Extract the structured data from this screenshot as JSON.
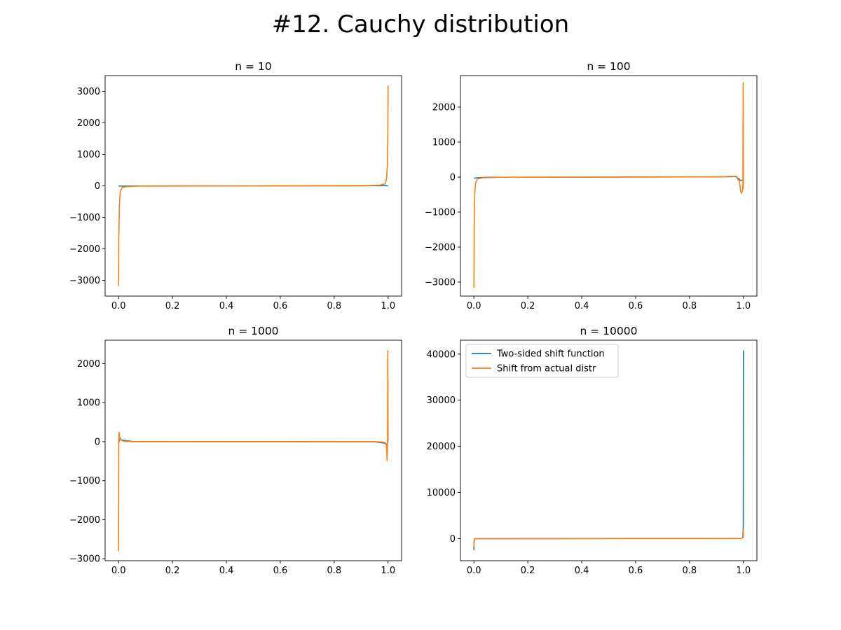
{
  "figure": {
    "title": "#12. Cauchy distribution"
  },
  "colors": {
    "two_sided": "#1f77b4",
    "actual": "#ff7f0e"
  },
  "chart_data": [
    {
      "type": "line",
      "title": "n = 10",
      "xlim": [
        -0.05,
        1.05
      ],
      "ylim": [
        -3500,
        3500
      ],
      "xticks": [
        0.0,
        0.2,
        0.4,
        0.6,
        0.8,
        1.0
      ],
      "xtick_labels": [
        "0.0",
        "0.2",
        "0.4",
        "0.6",
        "0.8",
        "1.0"
      ],
      "yticks": [
        -3000,
        -2000,
        -1000,
        0,
        1000,
        2000,
        3000
      ],
      "ytick_labels": [
        "−3000",
        "−2000",
        "−1000",
        "0",
        "1000",
        "2000",
        "3000"
      ],
      "grid": false,
      "legend": null,
      "series": [
        {
          "color": "#1f77b4",
          "x": [
            0.0,
            0.01,
            0.05,
            0.5,
            0.95,
            0.99,
            1.0
          ],
          "y": [
            -5,
            -8,
            -3,
            0,
            3,
            8,
            5
          ]
        },
        {
          "color": "#ff7f0e",
          "x": [
            0.0,
            0.001,
            0.003,
            0.006,
            0.012,
            0.03,
            0.07,
            0.5,
            0.93,
            0.97,
            0.988,
            0.994,
            0.997,
            0.999,
            1.0
          ],
          "y": [
            -3180,
            -1500,
            -600,
            -200,
            -60,
            -25,
            -10,
            0,
            10,
            25,
            60,
            200,
            600,
            1500,
            3180
          ]
        }
      ]
    },
    {
      "type": "line",
      "title": "n = 100",
      "xlim": [
        -0.05,
        1.05
      ],
      "ylim": [
        -3400,
        2900
      ],
      "xticks": [
        0.0,
        0.2,
        0.4,
        0.6,
        0.8,
        1.0
      ],
      "xtick_labels": [
        "0.0",
        "0.2",
        "0.4",
        "0.6",
        "0.8",
        "1.0"
      ],
      "yticks": [
        -3000,
        -2000,
        -1000,
        0,
        1000,
        2000
      ],
      "ytick_labels": [
        "−3000",
        "−2000",
        "−1000",
        "0",
        "1000",
        "2000"
      ],
      "grid": false,
      "legend": null,
      "series": [
        {
          "color": "#1f77b4",
          "x": [
            0.0,
            0.01,
            0.05,
            0.5,
            0.95,
            0.97,
            0.985,
            0.99,
            1.0
          ],
          "y": [
            -30,
            -20,
            -5,
            0,
            10,
            20,
            -60,
            -100,
            -80
          ]
        },
        {
          "color": "#ff7f0e",
          "x": [
            0.0,
            0.001,
            0.003,
            0.006,
            0.012,
            0.03,
            0.1,
            0.5,
            0.9,
            0.96,
            0.975,
            0.98,
            0.985,
            0.99,
            0.993,
            0.996,
            0.998,
            0.999,
            1.0
          ],
          "y": [
            -3170,
            -1500,
            -500,
            -180,
            -60,
            -20,
            -5,
            0,
            5,
            25,
            20,
            -80,
            -100,
            -420,
            -460,
            -400,
            -300,
            2700,
            -330
          ]
        }
      ]
    },
    {
      "type": "line",
      "title": "n = 1000",
      "xlim": [
        -0.05,
        1.05
      ],
      "ylim": [
        -3050,
        2600
      ],
      "xticks": [
        0.0,
        0.2,
        0.4,
        0.6,
        0.8,
        1.0
      ],
      "xtick_labels": [
        "0.0",
        "0.2",
        "0.4",
        "0.6",
        "0.8",
        "1.0"
      ],
      "yticks": [
        -3000,
        -2000,
        -1000,
        0,
        1000,
        2000
      ],
      "ytick_labels": [
        "−3000",
        "−2000",
        "−1000",
        "0",
        "1000",
        "2000"
      ],
      "grid": false,
      "legend": null,
      "series": [
        {
          "color": "#1f77b4",
          "x": [
            0.0,
            0.005,
            0.01,
            0.05,
            0.5,
            0.95,
            0.99,
            0.995,
            1.0
          ],
          "y": [
            -40,
            100,
            40,
            5,
            0,
            -5,
            -40,
            -100,
            50
          ]
        },
        {
          "color": "#ff7f0e",
          "x": [
            0.0,
            0.0005,
            0.001,
            0.002,
            0.003,
            0.004,
            0.006,
            0.01,
            0.02,
            0.05,
            0.5,
            0.95,
            0.98,
            0.99,
            0.993,
            0.995,
            0.996,
            0.997,
            0.998,
            0.999,
            1.0
          ],
          "y": [
            -2800,
            -500,
            200,
            240,
            150,
            60,
            80,
            30,
            10,
            0,
            0,
            0,
            -10,
            -30,
            -80,
            -200,
            -480,
            -350,
            100,
            2330,
            50
          ]
        }
      ]
    },
    {
      "type": "line",
      "title": "n = 10000",
      "xlim": [
        -0.05,
        1.05
      ],
      "ylim": [
        -4800,
        43000
      ],
      "xticks": [
        0.0,
        0.2,
        0.4,
        0.6,
        0.8,
        1.0
      ],
      "xtick_labels": [
        "0.0",
        "0.2",
        "0.4",
        "0.6",
        "0.8",
        "1.0"
      ],
      "yticks": [
        0,
        10000,
        20000,
        30000,
        40000
      ],
      "ytick_labels": [
        "0",
        "10000",
        "20000",
        "30000",
        "40000"
      ],
      "grid": false,
      "legend": "upper left",
      "series": [
        {
          "name": "Two-sided shift function",
          "color": "#1f77b4",
          "x": [
            0.0,
            0.0005,
            0.002,
            0.01,
            0.5,
            0.99,
            0.998,
            0.9995,
            1.0
          ],
          "y": [
            -2500,
            -800,
            -100,
            -20,
            0,
            20,
            200,
            3000,
            40800
          ]
        },
        {
          "name": "Shift from actual distr",
          "color": "#ff7f0e",
          "x": [
            0.0,
            0.0005,
            0.002,
            0.01,
            0.5,
            0.99,
            0.998,
            0.9995,
            1.0
          ],
          "y": [
            -1800,
            -600,
            -80,
            -15,
            0,
            15,
            150,
            300,
            2000
          ]
        }
      ]
    }
  ]
}
